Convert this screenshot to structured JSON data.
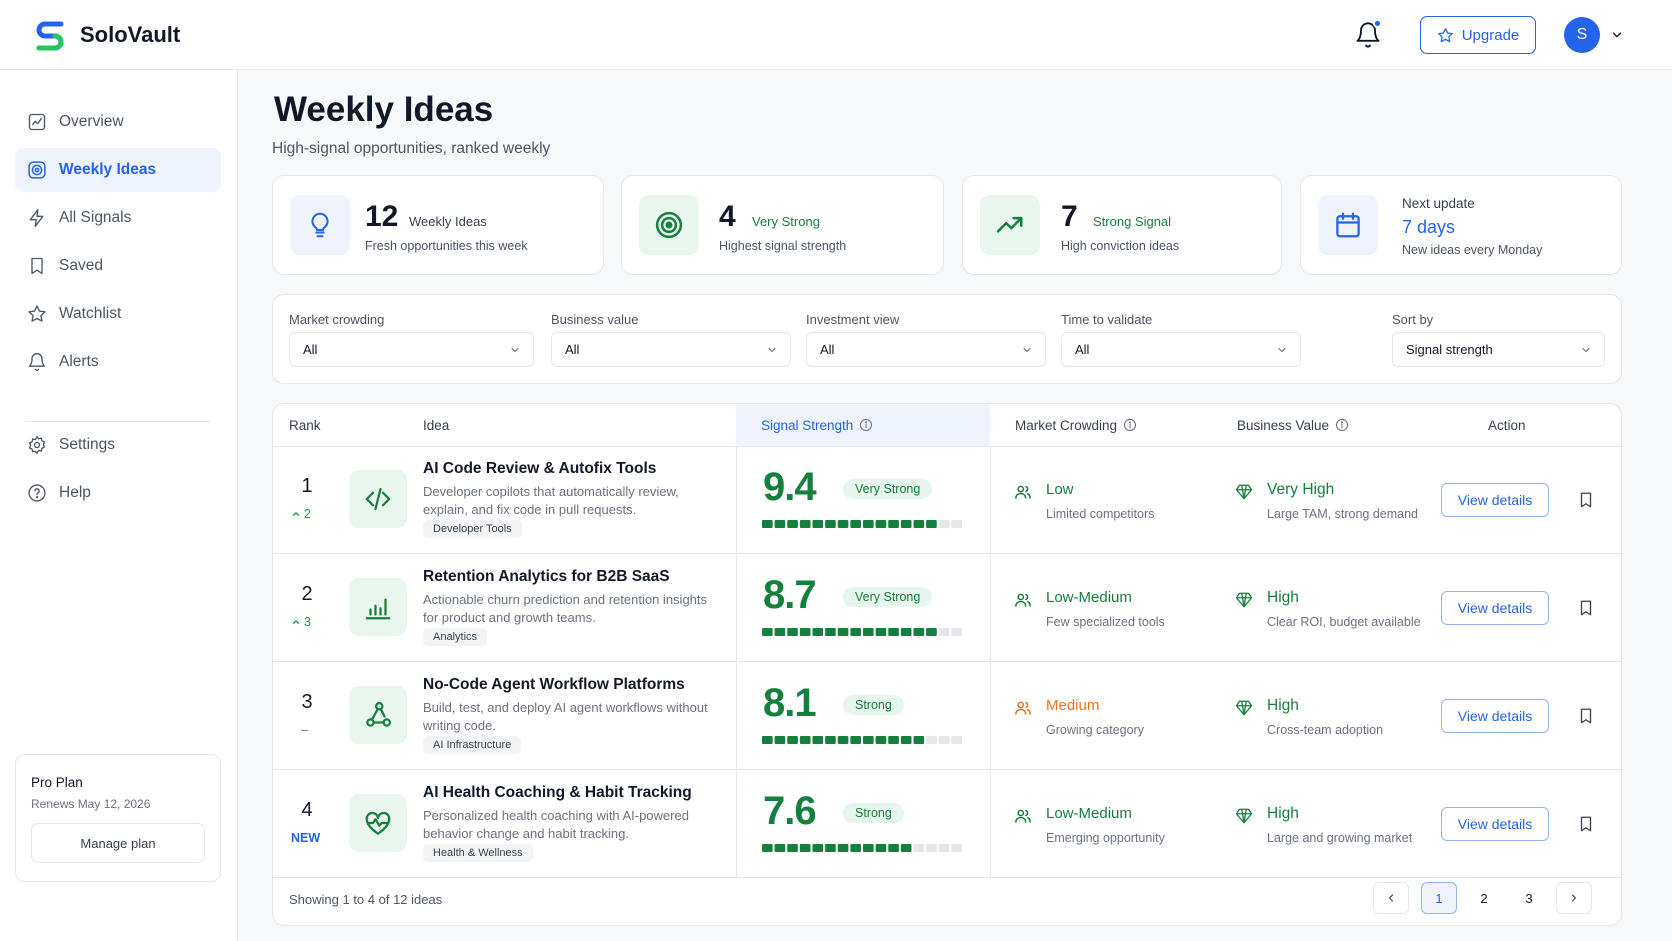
{
  "brand": {
    "name": "SoloVault",
    "primary": "#2563eb",
    "success": "#15803d",
    "warning": "#ea7316"
  },
  "header": {
    "upgrade_label": "Upgrade",
    "avatar_initial": "S"
  },
  "sidebar": {
    "items": [
      {
        "label": "Overview",
        "icon": "chart-icon"
      },
      {
        "label": "Weekly Ideas",
        "icon": "target-icon",
        "active": true
      },
      {
        "label": "All Signals",
        "icon": "lightning-icon"
      },
      {
        "label": "Saved",
        "icon": "bookmark-icon"
      },
      {
        "label": "Watchlist",
        "icon": "star-icon"
      },
      {
        "label": "Alerts",
        "icon": "bell-icon"
      },
      {
        "label": "Settings",
        "icon": "gear-icon"
      },
      {
        "label": "Help",
        "icon": "help-icon"
      }
    ],
    "plan": {
      "name": "Pro Plan",
      "renews": "Renews May 12, 2026",
      "manage_label": "Manage plan"
    }
  },
  "page": {
    "title": "Weekly Ideas",
    "subtitle": "High-signal opportunities, ranked weekly"
  },
  "stats": [
    {
      "value": "12",
      "label": "Weekly Ideas",
      "desc": "Fresh opportunities this week",
      "icon": "lightbulb-icon"
    },
    {
      "value": "4",
      "label": "Very Strong",
      "desc": "Highest signal strength",
      "icon": "target-icon"
    },
    {
      "value": "7",
      "label": "Strong Signal",
      "desc": "High conviction ideas",
      "icon": "trend-up-icon"
    },
    {
      "value": "7 days",
      "label": "Next update",
      "desc": "New ideas every Monday",
      "icon": "calendar-icon"
    }
  ],
  "filters": [
    {
      "label": "Market crowding",
      "value": "All"
    },
    {
      "label": "Business value",
      "value": "All"
    },
    {
      "label": "Investment view",
      "value": "All"
    },
    {
      "label": "Time to validate",
      "value": "All"
    },
    {
      "label": "Sort by",
      "value": "Signal strength"
    }
  ],
  "table": {
    "headers": {
      "rank": "Rank",
      "idea": "Idea",
      "signal": "Signal Strength",
      "crowding": "Market Crowding",
      "value": "Business Value",
      "action": "Action"
    },
    "rows": [
      {
        "rank": "1",
        "change": "2",
        "change_type": "up",
        "icon": "code-icon",
        "title": "AI Code Review & Autofix Tools",
        "desc": "Developer copilots that automatically review, explain, and fix code in pull requests.",
        "tag": "Developer Tools",
        "signal": "9.4",
        "signal_label": "Very Strong",
        "signal_fill": 0.9,
        "crowding": "Low",
        "crowding_sub": "Limited competitors",
        "crowding_color": "#15803d",
        "value": "Very High",
        "value_sub": "Large TAM, strong demand",
        "action_label": "View details"
      },
      {
        "rank": "2",
        "change": "3",
        "change_type": "up",
        "icon": "bar-chart-icon",
        "title": "Retention Analytics for B2B SaaS",
        "desc": "Actionable churn prediction and retention insights for product and growth teams.",
        "tag": "Analytics",
        "signal": "8.7",
        "signal_label": "Very Strong",
        "signal_fill": 0.88,
        "crowding": "Low-Medium",
        "crowding_sub": "Few specialized tools",
        "crowding_color": "#15803d",
        "value": "High",
        "value_sub": "Clear ROI, budget available",
        "action_label": "View details"
      },
      {
        "rank": "3",
        "change": "–",
        "change_type": "none",
        "icon": "workflow-icon",
        "title": "No-Code Agent Workflow Platforms",
        "desc": "Build, test, and deploy AI agent workflows without writing code.",
        "tag": "AI Infrastructure",
        "signal": "8.1",
        "signal_label": "Strong",
        "signal_fill": 0.8,
        "crowding": "Medium",
        "crowding_sub": "Growing category",
        "crowding_color": "#ea7316",
        "value": "High",
        "value_sub": "Cross-team adoption",
        "action_label": "View details"
      },
      {
        "rank": "4",
        "change": "NEW",
        "change_type": "new",
        "icon": "heart-pulse-icon",
        "title": "AI Health Coaching & Habit Tracking",
        "desc": "Personalized health coaching with AI-powered behavior change and habit tracking.",
        "tag": "Health & Wellness",
        "signal": "7.6",
        "signal_label": "Strong",
        "signal_fill": 0.78,
        "crowding": "Low-Medium",
        "crowding_sub": "Emerging opportunity",
        "crowding_color": "#15803d",
        "value": "High",
        "value_sub": "Large and growing market",
        "action_label": "View details"
      }
    ],
    "footer": "Showing 1 to 4 of 12 ideas",
    "pages": [
      "1",
      "2",
      "3"
    ]
  }
}
